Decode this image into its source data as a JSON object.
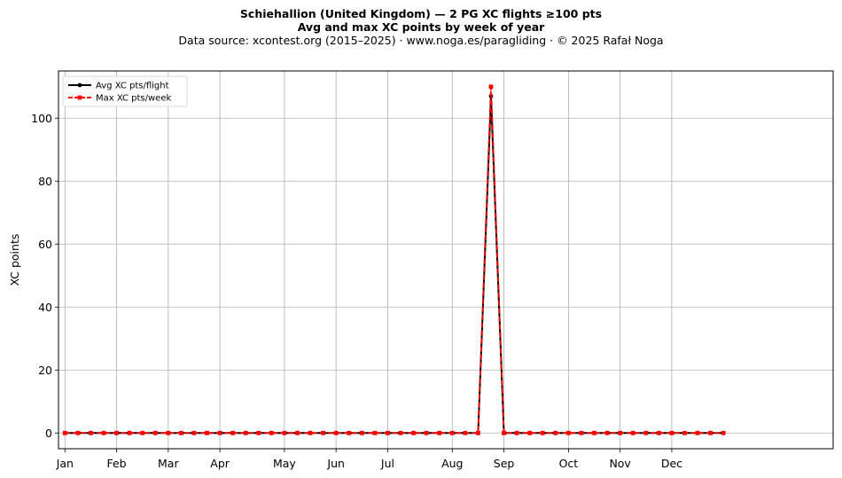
{
  "chart_data": {
    "type": "line",
    "title": "Schiehallion (United Kingdom)  —  2 PG XC flights ≥100 pts",
    "subtitle": "Avg and max XC points by week of year",
    "source": "Data source: xcontest.org (2015–2025)  ·  www.noga.es/paragliding  ·  © 2025 Rafał Noga",
    "xlabel": "",
    "ylabel": "XC points",
    "ylim": [
      -5,
      115
    ],
    "yticks": [
      0,
      20,
      40,
      60,
      80,
      100
    ],
    "xlim": [
      -0.5,
      59.5
    ],
    "month_ticks": [
      {
        "label": "Jan",
        "week": 0
      },
      {
        "label": "Feb",
        "week": 4
      },
      {
        "label": "Mar",
        "week": 8
      },
      {
        "label": "Apr",
        "week": 12
      },
      {
        "label": "May",
        "week": 17
      },
      {
        "label": "Jun",
        "week": 21
      },
      {
        "label": "Jul",
        "week": 25
      },
      {
        "label": "Aug",
        "week": 30
      },
      {
        "label": "Sep",
        "week": 34
      },
      {
        "label": "Oct",
        "week": 39
      },
      {
        "label": "Nov",
        "week": 43
      },
      {
        "label": "Dec",
        "week": 47
      }
    ],
    "grid": true,
    "legend_position": "top-left",
    "x": [
      0,
      1,
      2,
      3,
      4,
      5,
      6,
      7,
      8,
      9,
      10,
      11,
      12,
      13,
      14,
      15,
      16,
      17,
      18,
      19,
      20,
      21,
      22,
      23,
      24,
      25,
      26,
      27,
      28,
      29,
      30,
      31,
      32,
      33,
      34,
      35,
      36,
      37,
      38,
      39,
      40,
      41,
      42,
      43,
      44,
      45,
      46,
      47,
      48,
      49,
      50,
      51
    ],
    "series": [
      {
        "name": "Avg XC pts/flight",
        "color": "#000000",
        "style": "solid",
        "values": [
          0,
          0,
          0,
          0,
          0,
          0,
          0,
          0,
          0,
          0,
          0,
          0,
          0,
          0,
          0,
          0,
          0,
          0,
          0,
          0,
          0,
          0,
          0,
          0,
          0,
          0,
          0,
          0,
          0,
          0,
          0,
          0,
          0,
          107,
          0,
          0,
          0,
          0,
          0,
          0,
          0,
          0,
          0,
          0,
          0,
          0,
          0,
          0,
          0,
          0,
          0,
          0
        ]
      },
      {
        "name": "Max XC pts/week",
        "color": "#ff0000",
        "style": "dashed",
        "values": [
          0,
          0,
          0,
          0,
          0,
          0,
          0,
          0,
          0,
          0,
          0,
          0,
          0,
          0,
          0,
          0,
          0,
          0,
          0,
          0,
          0,
          0,
          0,
          0,
          0,
          0,
          0,
          0,
          0,
          0,
          0,
          0,
          0,
          110,
          0,
          0,
          0,
          0,
          0,
          0,
          0,
          0,
          0,
          0,
          0,
          0,
          0,
          0,
          0,
          0,
          0,
          0
        ]
      }
    ]
  }
}
